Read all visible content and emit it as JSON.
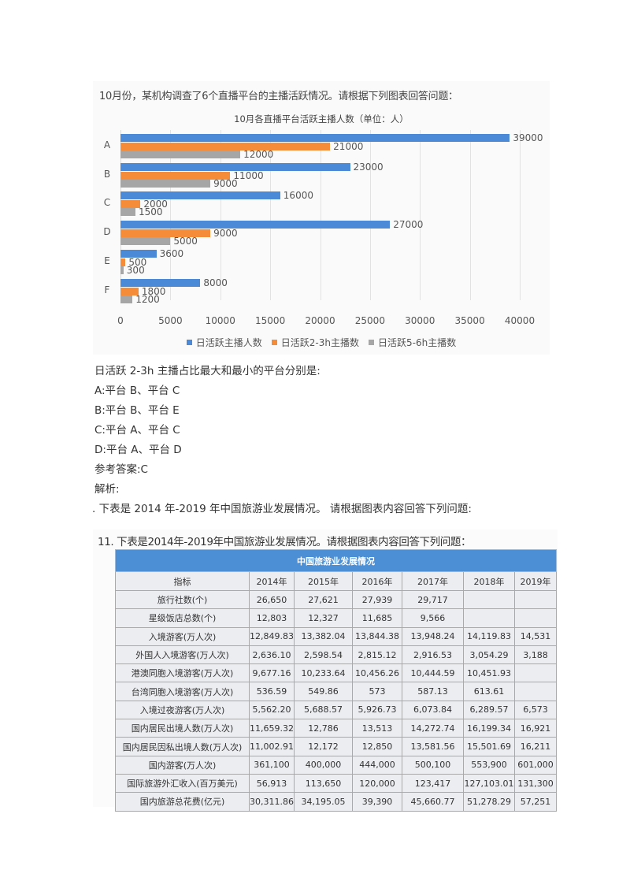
{
  "question1": {
    "intro": "10月份，某机构调查了6个直播平台的主播活跃情况。请根据下列图表回答问题：",
    "question": "日活跃 2-3h 主播占比最大和最小的平台分别是:",
    "options": [
      {
        "label": "A:平台 B、平台 C"
      },
      {
        "label": "B:平台 B、平台 E"
      },
      {
        "label": "C:平台 A、平台 C"
      },
      {
        "label": "D:平台 A、平台 D"
      }
    ],
    "answer": "参考答案:C",
    "analysis_label": "解析:"
  },
  "chart_data": {
    "type": "bar",
    "orientation": "horizontal",
    "title": "10月各直播平台活跃主播人数（单位：人）",
    "categories": [
      "A",
      "B",
      "C",
      "D",
      "E",
      "F"
    ],
    "series": [
      {
        "name": "日活跃主播人数",
        "color": "#4a8ad6",
        "values": [
          39000,
          23000,
          16000,
          27000,
          3600,
          8000
        ]
      },
      {
        "name": "日活跃2-3h主播数",
        "color": "#f58c3a",
        "values": [
          21000,
          11000,
          2000,
          9000,
          500,
          1800
        ]
      },
      {
        "name": "日活跃5-6h主播数",
        "color": "#a6a6a6",
        "values": [
          12000,
          9000,
          1500,
          5000,
          300,
          1200
        ]
      }
    ],
    "xticks": [
      "0",
      "5000",
      "10000",
      "15000",
      "20000",
      "25000",
      "30000",
      "35000",
      "40000"
    ],
    "xlim": [
      0,
      40000
    ],
    "xlabel": "",
    "ylabel": "",
    "grid": true,
    "legend_position": "bottom"
  },
  "question2": {
    "intro_line": ". 下表是 2014 年-2019 年中国旅游业发展情况。 请根据图表内容回答下列问题:",
    "image_intro": "11. 下表是2014年-2019年中国旅游业发展情况。请根据图表内容回答下列问题：",
    "table": {
      "caption": "中国旅游业发展情况",
      "headers": [
        "指标",
        "2014年",
        "2015年",
        "2016年",
        "2017年",
        "2018年",
        "2019年"
      ],
      "rows": [
        [
          "旅行社数(个)",
          "26,650",
          "27,621",
          "27,939",
          "29,717",
          "",
          ""
        ],
        [
          "星级饭店总数(个)",
          "12,803",
          "12,327",
          "11,685",
          "9,566",
          "",
          ""
        ],
        [
          "入境游客(万人次)",
          "12,849.83",
          "13,382.04",
          "13,844.38",
          "13,948.24",
          "14,119.83",
          "14,531"
        ],
        [
          "外国人入境游客(万人次)",
          "2,636.10",
          "2,598.54",
          "2,815.12",
          "2,916.53",
          "3,054.29",
          "3,188"
        ],
        [
          "港澳同胞入境游客(万人次)",
          "9,677.16",
          "10,233.64",
          "10,456.26",
          "10,444.59",
          "10,451.93",
          ""
        ],
        [
          "台湾同胞入境游客(万人次)",
          "536.59",
          "549.86",
          "573",
          "587.13",
          "613.61",
          ""
        ],
        [
          "入境过夜游客(万人次)",
          "5,562.20",
          "5,688.57",
          "5,926.73",
          "6,073.84",
          "6,289.57",
          "6,573"
        ],
        [
          "国内居民出境人数(万人次)",
          "11,659.32",
          "12,786",
          "13,513",
          "14,272.74",
          "16,199.34",
          "16,921"
        ],
        [
          "国内居民因私出境人数(万人次)",
          "11,002.91",
          "12,172",
          "12,850",
          "13,581.56",
          "15,501.69",
          "16,211"
        ],
        [
          "国内游客(万人次)",
          "361,100",
          "400,000",
          "444,000",
          "500,100",
          "553,900",
          "601,000"
        ],
        [
          "国际旅游外汇收入(百万美元)",
          "56,913",
          "113,650",
          "120,000",
          "123,417",
          "127,103.01",
          "131,300"
        ],
        [
          "国内旅游总花费(亿元)",
          "30,311.86",
          "34,195.05",
          "39,390",
          "45,660.77",
          "51,278.29",
          "57,251"
        ]
      ]
    }
  },
  "colors": {
    "table_caption_bg": "#4c8fd4",
    "table_cell_bg": "#ecedf1"
  }
}
